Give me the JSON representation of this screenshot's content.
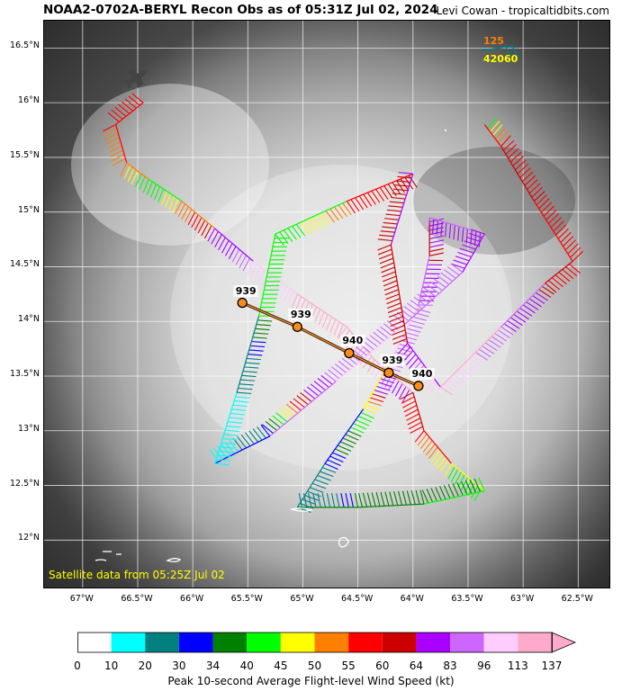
{
  "header": {
    "title": "NOAA2-0702A-BERYL Recon Obs as of 05:31Z Jul 02, 2024",
    "credit": "Levi Cowan - tropicaltidbits.com"
  },
  "map": {
    "lon_range": [
      -67.35,
      -62.2
    ],
    "lat_range": [
      11.55,
      16.75
    ],
    "lat_ticks": [
      {
        "value": 16.5,
        "label": "16.5°N"
      },
      {
        "value": 16.0,
        "label": "16°N"
      },
      {
        "value": 15.5,
        "label": "15.5°N"
      },
      {
        "value": 15.0,
        "label": "15°N"
      },
      {
        "value": 14.5,
        "label": "14.5°N"
      },
      {
        "value": 14.0,
        "label": "14°N"
      },
      {
        "value": 13.5,
        "label": "13.5°N"
      },
      {
        "value": 13.0,
        "label": "13°N"
      },
      {
        "value": 12.5,
        "label": "12.5°N"
      },
      {
        "value": 12.0,
        "label": "12°N"
      }
    ],
    "lon_ticks": [
      {
        "value": -67.0,
        "label": "67°W"
      },
      {
        "value": -66.5,
        "label": "66.5°W"
      },
      {
        "value": -66.0,
        "label": "66°W"
      },
      {
        "value": -65.5,
        "label": "65.5°W"
      },
      {
        "value": -65.0,
        "label": "65°W"
      },
      {
        "value": -64.5,
        "label": "64.5°W"
      },
      {
        "value": -64.0,
        "label": "64°W"
      },
      {
        "value": -63.5,
        "label": "63.5°W"
      },
      {
        "value": -63.0,
        "label": "63°W"
      },
      {
        "value": -62.5,
        "label": "62.5°W"
      }
    ],
    "satellite_note": "Satellite data from 05:25Z Jul 02",
    "legend": {
      "pressure_label": "125",
      "altitude_label": "42060"
    }
  },
  "centers": [
    {
      "lon": -65.55,
      "lat": 14.17,
      "pressure": "939"
    },
    {
      "lon": -65.05,
      "lat": 13.95,
      "pressure": "939"
    },
    {
      "lon": -64.58,
      "lat": 13.71,
      "pressure": "940"
    },
    {
      "lon": -64.22,
      "lat": 13.53,
      "pressure": "939"
    },
    {
      "lon": -63.95,
      "lat": 13.41,
      "pressure": "940"
    }
  ],
  "flight_track": [
    {
      "lon": -66.45,
      "lat": 16.0,
      "wind": 55
    },
    {
      "lon": -66.7,
      "lat": 15.8,
      "wind": 55
    },
    {
      "lon": -66.6,
      "lat": 15.45,
      "wind": 50
    },
    {
      "lon": -66.4,
      "lat": 15.3,
      "wind": 40
    },
    {
      "lon": -66.1,
      "lat": 15.1,
      "wind": 50
    },
    {
      "lon": -65.8,
      "lat": 14.85,
      "wind": 64
    },
    {
      "lon": -65.45,
      "lat": 14.55,
      "wind": 96
    },
    {
      "lon": -65.05,
      "lat": 14.25,
      "wind": 113
    },
    {
      "lon": -64.6,
      "lat": 13.95,
      "wind": 137
    },
    {
      "lon": -64.35,
      "lat": 13.65,
      "wind": 113
    },
    {
      "lon": -64.0,
      "lat": 13.35,
      "wind": 60
    },
    {
      "lon": -63.9,
      "lat": 13.0,
      "wind": 55
    },
    {
      "lon": -63.65,
      "lat": 12.7,
      "wind": 45
    },
    {
      "lon": -63.35,
      "lat": 12.45,
      "wind": 40
    },
    {
      "lon": -63.9,
      "lat": 12.33,
      "wind": 34
    },
    {
      "lon": -64.5,
      "lat": 12.3,
      "wind": 34
    },
    {
      "lon": -65.05,
      "lat": 12.3,
      "wind": 20
    },
    {
      "lon": -64.8,
      "lat": 12.7,
      "wind": 30
    },
    {
      "lon": -64.45,
      "lat": 13.2,
      "wind": 45
    },
    {
      "lon": -64.2,
      "lat": 13.65,
      "wind": 96
    },
    {
      "lon": -63.95,
      "lat": 14.15,
      "wind": 83
    },
    {
      "lon": -63.85,
      "lat": 14.6,
      "wind": 60
    },
    {
      "lon": -63.85,
      "lat": 14.95,
      "wind": 83
    },
    {
      "lon": -63.35,
      "lat": 14.8,
      "wind": 64
    },
    {
      "lon": -63.55,
      "lat": 14.45,
      "wind": 83
    },
    {
      "lon": -64.1,
      "lat": 13.95,
      "wind": 96
    },
    {
      "lon": -64.7,
      "lat": 13.45,
      "wind": 83
    },
    {
      "lon": -65.3,
      "lat": 12.95,
      "wind": 30
    },
    {
      "lon": -65.8,
      "lat": 12.7,
      "wind": 10
    },
    {
      "lon": -65.6,
      "lat": 13.35,
      "wind": 20
    },
    {
      "lon": -65.4,
      "lat": 14.05,
      "wind": 40
    },
    {
      "lon": -65.25,
      "lat": 14.8,
      "wind": 40
    },
    {
      "lon": -64.6,
      "lat": 15.1,
      "wind": 55
    },
    {
      "lon": -64.0,
      "lat": 15.35,
      "wind": 64
    },
    {
      "lon": -64.2,
      "lat": 14.7,
      "wind": 60
    },
    {
      "lon": -64.05,
      "lat": 13.8,
      "wind": 64
    },
    {
      "lon": -63.75,
      "lat": 13.4,
      "wind": 113
    },
    {
      "lon": -63.2,
      "lat": 13.95,
      "wind": 83
    },
    {
      "lon": -62.8,
      "lat": 14.35,
      "wind": 60
    },
    {
      "lon": -62.55,
      "lat": 14.55,
      "wind": 55
    },
    {
      "lon": -62.9,
      "lat": 15.1,
      "wind": 60
    },
    {
      "lon": -63.2,
      "lat": 15.6,
      "wind": 55
    },
    {
      "lon": -63.35,
      "lat": 15.8,
      "wind": 40
    }
  ],
  "colorbar": {
    "ticks": [
      "0",
      "10",
      "20",
      "30",
      "34",
      "40",
      "45",
      "50",
      "55",
      "60",
      "64",
      "83",
      "96",
      "113",
      "137"
    ],
    "colors": [
      "#ffffff",
      "#00ffff",
      "#008080",
      "#0000ff",
      "#008000",
      "#00ff00",
      "#ffff00",
      "#ff7f00",
      "#ff0000",
      "#cc0000",
      "#aa00ff",
      "#cc66ff",
      "#ffccff",
      "#ffaacc"
    ],
    "label": "Peak 10-second Average Flight-level Wind Speed (kt)"
  }
}
